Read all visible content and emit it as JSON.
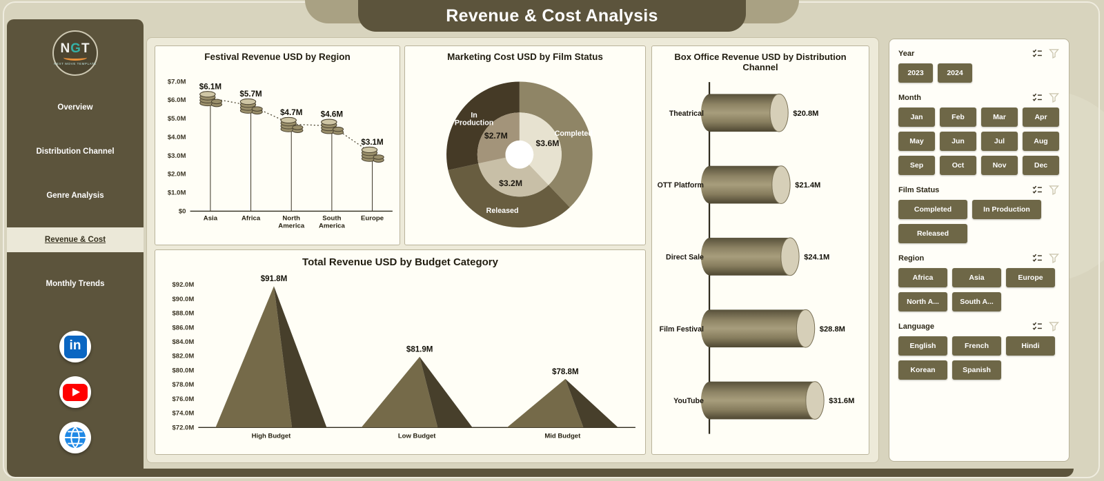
{
  "header": {
    "title": "Revenue & Cost Analysis"
  },
  "sidebar": {
    "logo": {
      "text": "NGT",
      "subtext": "NEXT MOVE TEMPLATE"
    },
    "items": [
      {
        "label": "Overview",
        "active": false
      },
      {
        "label": "Distribution Channel",
        "active": false
      },
      {
        "label": "Genre Analysis",
        "active": false
      },
      {
        "label": "Revenue & Cost",
        "active": true
      },
      {
        "label": "Monthly Trends",
        "active": false
      }
    ],
    "social_icons": [
      "linkedin-icon",
      "youtube-icon",
      "globe-icon"
    ]
  },
  "chart_data": [
    {
      "id": "festival_revenue",
      "type": "line",
      "title": "Festival Revenue USD by Region",
      "categories": [
        "Asia",
        "Africa",
        "North America",
        "South America",
        "Europe"
      ],
      "values": [
        6.1,
        5.7,
        4.7,
        4.6,
        3.1
      ],
      "labels": [
        "$6.1M",
        "$5.7M",
        "$4.7M",
        "$4.6M",
        "$3.1M"
      ],
      "ylim": [
        0,
        7
      ],
      "yticks": [
        "$7.0M",
        "$6.0M",
        "$5.0M",
        "$4.0M",
        "$3.0M",
        "$2.0M",
        "$1.0M",
        "$0"
      ],
      "marker": "coin-stack",
      "line_style": "dotted",
      "grid": false
    },
    {
      "id": "marketing_cost",
      "type": "pie",
      "title": "Marketing Cost USD by Film Status",
      "segments": [
        {
          "name": "Completed",
          "value": 3.6,
          "label": "$3.6M",
          "outer": "#8f8566",
          "inner": "#e7e2d0"
        },
        {
          "name": "Released",
          "value": 3.2,
          "label": "$3.2M",
          "outer": "#685d40",
          "inner": "#c8bfa7"
        },
        {
          "name": "In Production",
          "value": 2.7,
          "label": "$2.7M",
          "outer": "#453a26",
          "inner": "#a3947a"
        }
      ],
      "legend_position": "on-slice",
      "start_angle_deg": 0
    },
    {
      "id": "total_revenue",
      "type": "area",
      "title": "Total Revenue USD by Budget Category",
      "categories": [
        "High Budget",
        "Low Budget",
        "Mid Budget"
      ],
      "values": [
        91.8,
        81.9,
        78.8
      ],
      "labels": [
        "$91.8M",
        "$81.9M",
        "$78.8M"
      ],
      "ylim": [
        72,
        92
      ],
      "yticks": [
        "$92.0M",
        "$90.0M",
        "$88.0M",
        "$86.0M",
        "$84.0M",
        "$82.0M",
        "$80.0M",
        "$78.0M",
        "$76.0M",
        "$74.0M",
        "$72.0M"
      ],
      "shape": "pyramid",
      "grid": false
    },
    {
      "id": "box_office",
      "type": "bar",
      "title": "Box Office Revenue USD by Distribution Channel",
      "categories": [
        "Theatrical",
        "OTT Platform",
        "Direct Sale",
        "Film Festival",
        "YouTube"
      ],
      "values": [
        20.8,
        21.4,
        24.1,
        28.8,
        31.6
      ],
      "labels": [
        "$20.8M",
        "$21.4M",
        "$24.1M",
        "$28.8M",
        "$31.6M"
      ],
      "orientation": "horizontal",
      "shape": "cylinder"
    }
  ],
  "filters": {
    "header_icons": [
      "select-all-icon",
      "filter-funnel-icon"
    ],
    "sections": [
      {
        "label": "Year",
        "options": [
          "2023",
          "2024"
        ]
      },
      {
        "label": "Month",
        "options": [
          "Jan",
          "Feb",
          "Mar",
          "Apr",
          "May",
          "Jun",
          "Jul",
          "Aug",
          "Sep",
          "Oct",
          "Nov",
          "Dec"
        ]
      },
      {
        "label": "Film Status",
        "options": [
          "Completed",
          "In Production",
          "Released"
        ]
      },
      {
        "label": "Region",
        "options": [
          "Africa",
          "Asia",
          "Europe",
          "North A...",
          "South A..."
        ]
      },
      {
        "label": "Language",
        "options": [
          "English",
          "French",
          "Hindi",
          "Korean",
          "Spanish"
        ]
      }
    ]
  },
  "colors": {
    "background": "#d8d4be",
    "sidebar": "#5c543c",
    "accent_button": "#6e6747",
    "card_bg": "#fffef6",
    "card_border": "#b9b39a",
    "olive_main": "#6f6546",
    "olive_dark": "#473f2b",
    "text_dark": "#211d10"
  }
}
